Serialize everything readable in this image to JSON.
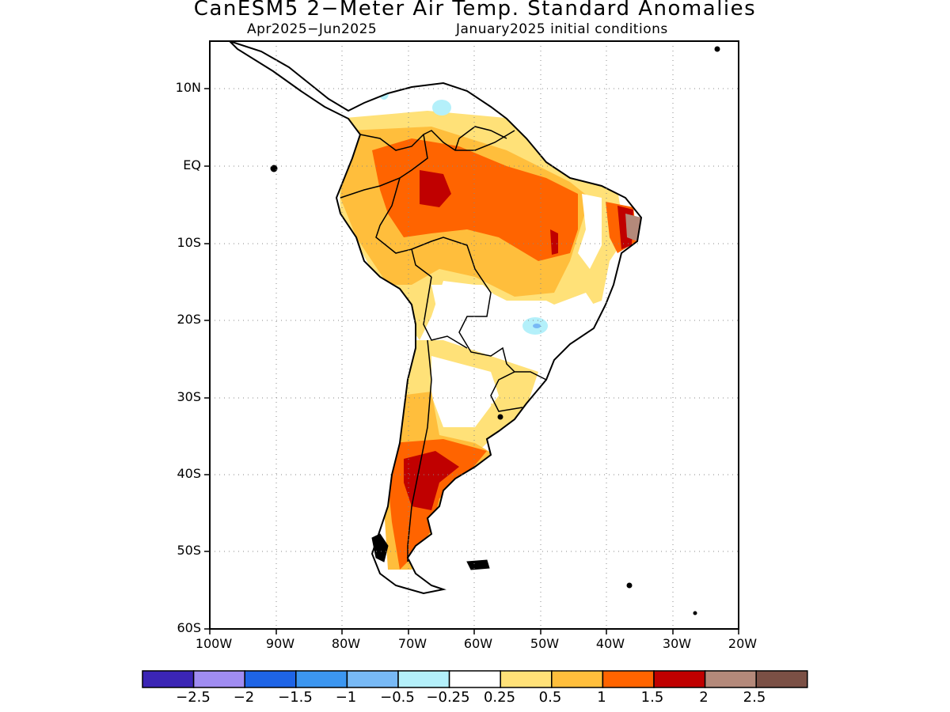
{
  "title": "CanESM5 2−Meter Air Temp. Standard Anomalies",
  "subtitle_left": "Apr2025−Jun2025",
  "subtitle_right": "January2025 initial conditions",
  "axes": {
    "lat_labels": [
      "10N",
      "EQ",
      "10S",
      "20S",
      "30S",
      "40S",
      "50S",
      "60S"
    ],
    "lon_labels": [
      "100W",
      "90W",
      "80W",
      "70W",
      "60W",
      "50W",
      "40W",
      "30W",
      "20W"
    ]
  },
  "colorbar": {
    "colors": [
      "#3b25b5",
      "#a08cf2",
      "#1e64e6",
      "#3c96f0",
      "#78b9f5",
      "#b4f0fa",
      "#ffffff",
      "#ffe178",
      "#ffbe3c",
      "#ff6400",
      "#c00000",
      "#b4897a",
      "#7b5045"
    ],
    "labels": [
      "−2.5",
      "−2",
      "−1.5",
      "−1",
      "−0.5",
      "−0.25",
      "0.25",
      "0.5",
      "1",
      "1.5",
      "2",
      "2.5"
    ]
  },
  "map_colors": {
    "light": "#ffe178",
    "orange": "#ffbe3c",
    "dark_orange": "#ff6400",
    "red": "#c00000",
    "brown": "#b4897a",
    "cyan": "#b4f0fa",
    "light_blue": "#78b9f5"
  }
}
